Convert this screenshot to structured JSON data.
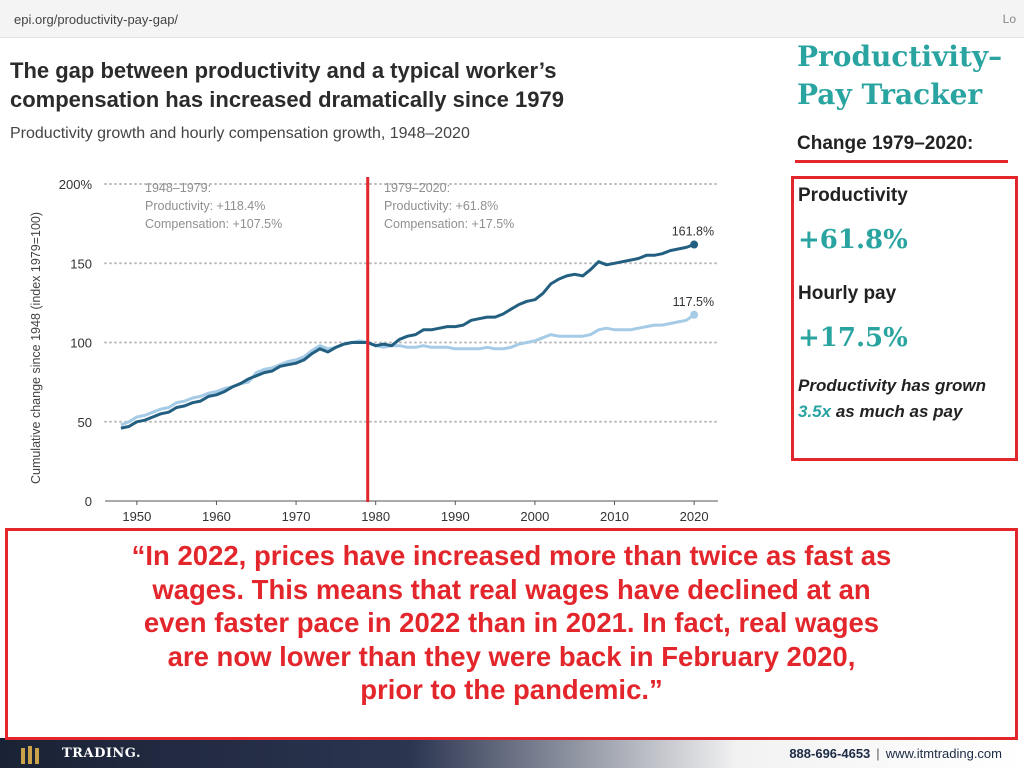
{
  "browser": {
    "url": "epi.org/productivity-pay-gap/",
    "edge_text": "Lo"
  },
  "main_title": "The gap between productivity and a typical worker’s compensation has increased dramatically since 1979",
  "subtitle": "Productivity growth and hourly compensation growth, 1948–2020",
  "chart_data": {
    "type": "line",
    "ylabel": "Cumulative change since 1948 (index 1979=100)",
    "ylim": [
      0,
      200
    ],
    "yticks": [
      0,
      50,
      100,
      150,
      200
    ],
    "ytick_labels": [
      "0",
      "50",
      "100",
      "150",
      "200%"
    ],
    "xlim": [
      1946,
      2023
    ],
    "xticks": [
      1950,
      1960,
      1970,
      1980,
      1990,
      2000,
      2010,
      2020
    ],
    "grid": true,
    "marker_year": 1979,
    "annotations": {
      "left": [
        "1948–1979:",
        "Productivity: +118.4%",
        "Compensation: +107.5%"
      ],
      "right": [
        "1979–2020:",
        "Productivity: +61.8%",
        "Compensation: +17.5%"
      ],
      "productivity_end_label": "161.8%",
      "compensation_end_label": "117.5%"
    },
    "series": [
      {
        "name": "Productivity",
        "color": "#235f80",
        "x": [
          1948,
          1949,
          1950,
          1951,
          1952,
          1953,
          1954,
          1955,
          1956,
          1957,
          1958,
          1959,
          1960,
          1961,
          1962,
          1963,
          1964,
          1965,
          1966,
          1967,
          1968,
          1969,
          1970,
          1971,
          1972,
          1973,
          1974,
          1975,
          1976,
          1977,
          1978,
          1979,
          1980,
          1981,
          1982,
          1983,
          1984,
          1985,
          1986,
          1987,
          1988,
          1989,
          1990,
          1991,
          1992,
          1993,
          1994,
          1995,
          1996,
          1997,
          1998,
          1999,
          2000,
          2001,
          2002,
          2003,
          2004,
          2005,
          2006,
          2007,
          2008,
          2009,
          2010,
          2011,
          2012,
          2013,
          2014,
          2015,
          2016,
          2017,
          2018,
          2019,
          2020
        ],
        "y": [
          46,
          47,
          50,
          51,
          53,
          55,
          56,
          59,
          60,
          62,
          63,
          66,
          67,
          69,
          72,
          74,
          77,
          79,
          81,
          82,
          85,
          86,
          87,
          89,
          93,
          96,
          94,
          97,
          99,
          100,
          100,
          100,
          98,
          99,
          98,
          102,
          104,
          105,
          108,
          108,
          109,
          110,
          110,
          111,
          114,
          115,
          116,
          116,
          118,
          121,
          124,
          126,
          127,
          131,
          137,
          140,
          142,
          143,
          142,
          146,
          151,
          149,
          150,
          151,
          152,
          153,
          155,
          155,
          156,
          158,
          159,
          160,
          161.8
        ]
      },
      {
        "name": "Compensation",
        "color": "#a6cbe6",
        "x": [
          1948,
          1949,
          1950,
          1951,
          1952,
          1953,
          1954,
          1955,
          1956,
          1957,
          1958,
          1959,
          1960,
          1961,
          1962,
          1963,
          1964,
          1965,
          1966,
          1967,
          1968,
          1969,
          1970,
          1971,
          1972,
          1973,
          1974,
          1975,
          1976,
          1977,
          1978,
          1979,
          1980,
          1981,
          1982,
          1983,
          1984,
          1985,
          1986,
          1987,
          1988,
          1989,
          1990,
          1991,
          1992,
          1993,
          1994,
          1995,
          1996,
          1997,
          1998,
          1999,
          2000,
          2001,
          2002,
          2003,
          2004,
          2005,
          2006,
          2007,
          2008,
          2009,
          2010,
          2011,
          2012,
          2013,
          2014,
          2015,
          2016,
          2017,
          2018,
          2019,
          2020
        ],
        "y": [
          48,
          50,
          53,
          54,
          56,
          58,
          59,
          62,
          63,
          65,
          66,
          68,
          69,
          71,
          72,
          74,
          75,
          81,
          83,
          84,
          86,
          88,
          89,
          91,
          95,
          98,
          96,
          97,
          99,
          100,
          101,
          100,
          98,
          97,
          98,
          98,
          97,
          97,
          98,
          97,
          97,
          97,
          96,
          96,
          96,
          96,
          97,
          96,
          96,
          97,
          99,
          100,
          101,
          103,
          105,
          104,
          104,
          104,
          104,
          105,
          108,
          109,
          108,
          108,
          108,
          109,
          110,
          111,
          111,
          112,
          113,
          114,
          117.5
        ]
      }
    ]
  },
  "tracker": {
    "title": "Productivity–Pay Tracker",
    "change_label": "Change 1979–2020:",
    "productivity_label": "Productivity",
    "productivity_value": "+61.8%",
    "pay_label": "Hourly pay",
    "pay_value": "+17.5%",
    "note_prefix": "Productivity has grown ",
    "note_highlight": "3.5x",
    "note_suffix": " as much as pay"
  },
  "quote": {
    "lines": [
      "“In 2022, prices have increased more than twice as fast as",
      "wages.  This means that real wages have declined at an",
      "even faster pace in 2022 than in 2021.  In fact, real wages",
      "are now lower than they were back in February 2020,",
      "prior to the pandemic.”"
    ]
  },
  "footer": {
    "brand": "TRADING.",
    "phone": "888-696-4653",
    "separator": "|",
    "website": "www.itmtrading.com"
  },
  "colors": {
    "accent_red": "#e3262b",
    "teal": "#2aa4a0",
    "productivity_line": "#235f80",
    "compensation_line": "#a6cbe6"
  }
}
